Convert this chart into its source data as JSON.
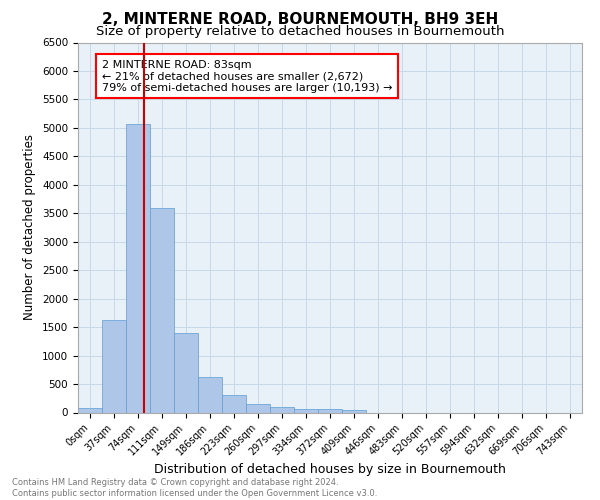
{
  "title": "2, MINTERNE ROAD, BOURNEMOUTH, BH9 3EH",
  "subtitle": "Size of property relative to detached houses in Bournemouth",
  "xlabel": "Distribution of detached houses by size in Bournemouth",
  "ylabel": "Number of detached properties",
  "footer_line1": "Contains HM Land Registry data © Crown copyright and database right 2024.",
  "footer_line2": "Contains public sector information licensed under the Open Government Licence v3.0.",
  "bin_labels": [
    "0sqm",
    "37sqm",
    "74sqm",
    "111sqm",
    "149sqm",
    "186sqm",
    "223sqm",
    "260sqm",
    "297sqm",
    "334sqm",
    "372sqm",
    "409sqm",
    "446sqm",
    "483sqm",
    "520sqm",
    "557sqm",
    "594sqm",
    "632sqm",
    "669sqm",
    "706sqm",
    "743sqm"
  ],
  "bar_heights": [
    75,
    1625,
    5075,
    3600,
    1400,
    625,
    300,
    150,
    90,
    60,
    55,
    50,
    0,
    0,
    0,
    0,
    0,
    0,
    0,
    0,
    0
  ],
  "bar_color": "#aec6e8",
  "bar_edge_color": "#5a9fd4",
  "ylim": [
    0,
    6500
  ],
  "yticks": [
    0,
    500,
    1000,
    1500,
    2000,
    2500,
    3000,
    3500,
    4000,
    4500,
    5000,
    5500,
    6000,
    6500
  ],
  "vline_x": 2.27,
  "vline_color": "#cc0000",
  "annotation_text": "2 MINTERNE ROAD: 83sqm\n← 21% of detached houses are smaller (2,672)\n79% of semi-detached houses are larger (10,193) →",
  "grid_color": "#c8d8e8",
  "background_color": "#e8f0f8",
  "title_fontsize": 11,
  "subtitle_fontsize": 9.5,
  "ylabel_fontsize": 8.5,
  "xlabel_fontsize": 9,
  "tick_fontsize": 7,
  "annotation_fontsize": 8,
  "footer_fontsize": 6,
  "footer_color": "#777777"
}
